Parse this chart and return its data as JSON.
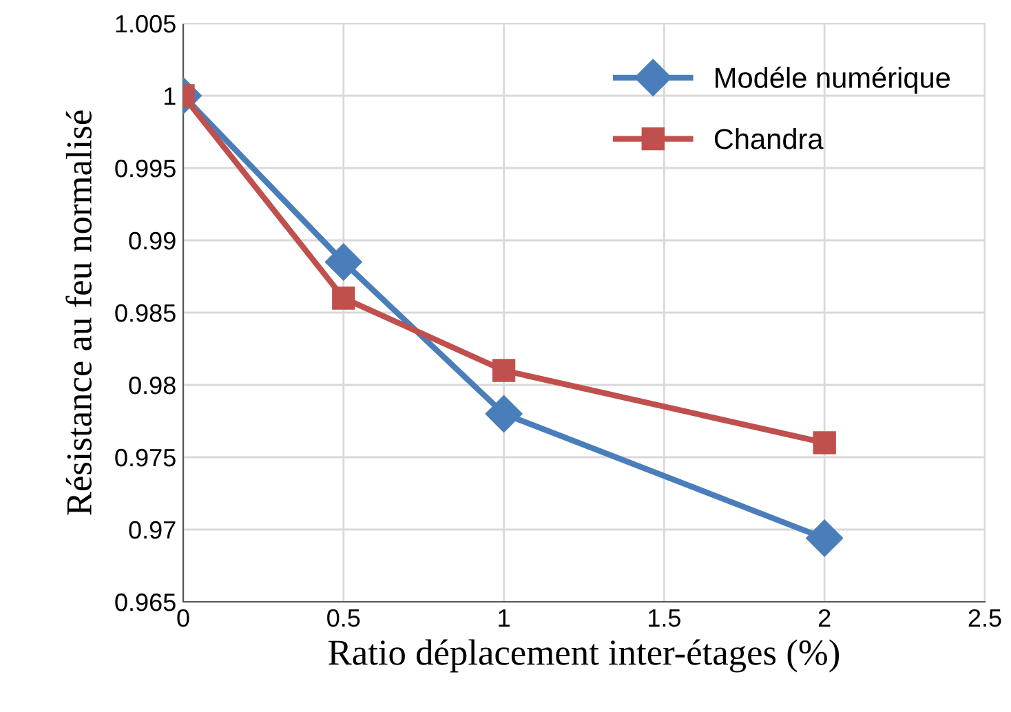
{
  "chart_data": {
    "type": "line",
    "xlabel": "Ratio déplacement inter-étages (%)",
    "ylabel": "Résistance au feu normalisé",
    "x": [
      0,
      0.5,
      1,
      2
    ],
    "series": [
      {
        "name": "Modéle numérique",
        "color": "#4a7ebb",
        "marker": "diamond",
        "values": [
          1,
          0.9885,
          0.978,
          0.9694
        ]
      },
      {
        "name": "Chandra",
        "color": "#c0504d",
        "marker": "square",
        "values": [
          1,
          0.986,
          0.981,
          0.976
        ]
      }
    ],
    "xlim": [
      0,
      2.5
    ],
    "xticks": [
      0,
      0.5,
      1,
      1.5,
      2,
      2.5
    ],
    "ylim": [
      0.965,
      1.005
    ],
    "yticks": [
      0.965,
      0.97,
      0.975,
      0.98,
      0.985,
      0.99,
      0.995,
      1,
      1.005
    ],
    "grid": true,
    "legend": "top right",
    "line_style": "solid"
  }
}
